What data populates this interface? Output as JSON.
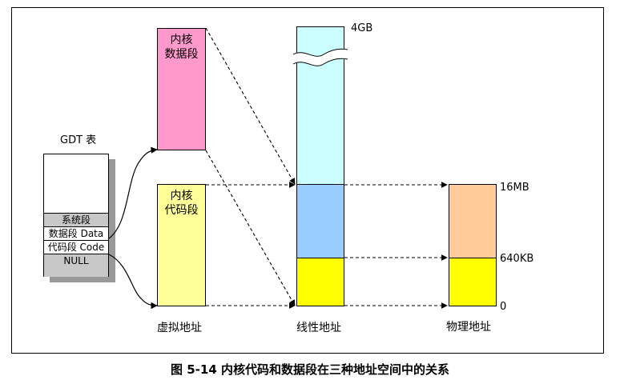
{
  "gdt": {
    "title": "GDT 表",
    "rows": [
      "系统段",
      "数据段 Data",
      "代码段 Code",
      "NULL"
    ]
  },
  "virtual": {
    "data_segment": [
      "内核",
      "数据段"
    ],
    "code_segment": [
      "内核",
      "代码段"
    ],
    "label": "虚拟地址"
  },
  "linear": {
    "top": "4GB",
    "label": "线性地址"
  },
  "physical": {
    "mark_16mb": "16MB",
    "mark_640kb": "640KB",
    "mark_0": "0",
    "label": "物理地址"
  },
  "caption": "图 5-14 内核代码和数据段在三种地址空间中的关系",
  "colors": {
    "data_segment": "#ff99cc",
    "code_segment": "#ffff99",
    "linear_high": "#ccffff",
    "linear_mid": "#99ccff",
    "yellow": "#ffff00",
    "physical_high": "#ffcc99",
    "shadow": "#999999"
  }
}
